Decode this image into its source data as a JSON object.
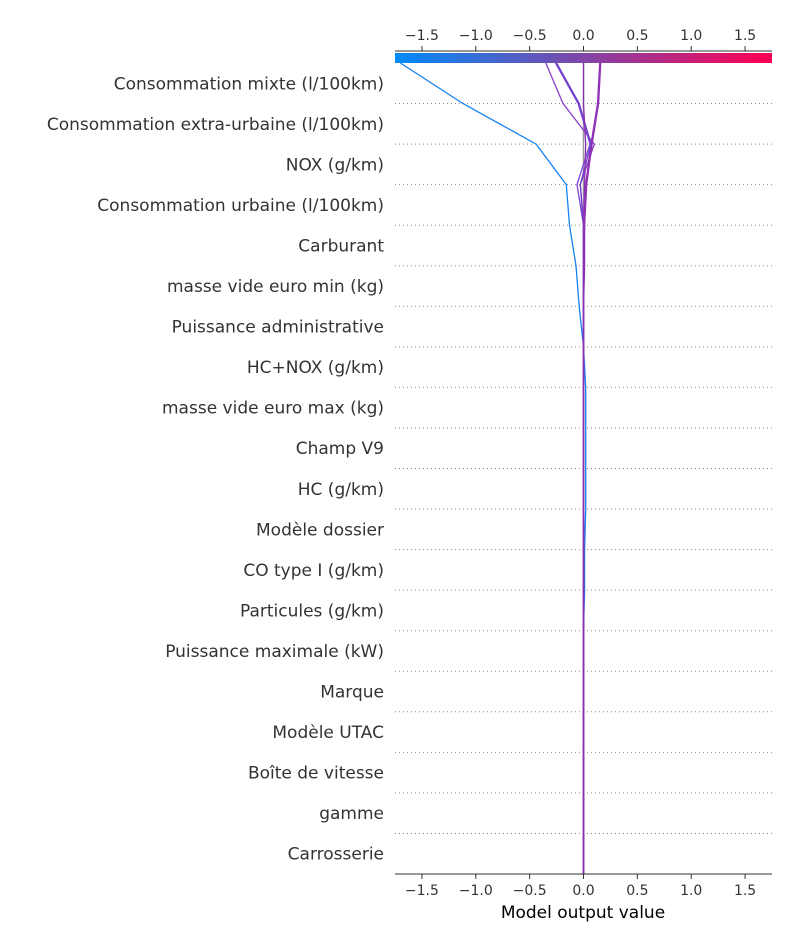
{
  "chart_data": {
    "type": "line",
    "title": "",
    "xlabel": "Model output value",
    "ylabel": "",
    "xlim": [
      -1.75,
      1.75
    ],
    "x_ticks": [
      -1.5,
      -1.0,
      -0.5,
      0.0,
      0.5,
      1.0,
      1.5
    ],
    "x_tick_labels": [
      "−1.5",
      "−1.0",
      "−0.5",
      "0.0",
      "0.5",
      "1.0",
      "1.5"
    ],
    "base_value": 0.0,
    "colorbar": {
      "colors": [
        "#008bfb",
        "#ff0052"
      ],
      "range": [
        -1.75,
        1.75
      ]
    },
    "grid": "dotted row separators",
    "features": [
      "Consommation mixte (l/100km)",
      "Consommation extra-urbaine (l/100km)",
      "NOX (g/km)",
      "Consommation urbaine (l/100km)",
      "Carburant",
      "masse vide euro min (kg)",
      "Puissance administrative",
      "HC+NOX (g/km)",
      "masse vide euro max (kg)",
      "Champ V9",
      "HC (g/km)",
      "Modèle dossier",
      "CO type I (g/km)",
      "Particules (g/km)",
      "Puissance maximale (kW)",
      "Marque",
      "Modèle UTAC",
      "Boîte de vitesse",
      "gamme",
      "Carrosserie"
    ],
    "series": [
      {
        "color": "#1582f3",
        "values": [
          -1.7,
          -1.12,
          -0.44,
          -0.16,
          -0.13,
          -0.07,
          -0.04,
          0.0,
          0.02,
          0.02,
          0.02,
          0.02,
          0.01,
          0.01,
          0.0,
          0.0,
          0.0,
          0.0,
          0.0,
          0.0,
          0.0
        ]
      },
      {
        "color": "#8a3ec9",
        "values": [
          -0.35,
          -0.19,
          0.1,
          -0.03,
          0.0,
          0.0,
          0.0,
          0.0,
          0.0,
          0.0,
          0.0,
          0.0,
          0.0,
          0.0,
          0.0,
          0.0,
          0.0,
          0.0,
          0.0,
          0.0,
          0.0
        ]
      },
      {
        "color": "#7e45d6",
        "values": [
          -0.26,
          -0.05,
          0.06,
          -0.06,
          0.0,
          0.0,
          0.0,
          0.0,
          0.0,
          0.0,
          0.0,
          0.0,
          0.0,
          0.0,
          0.0,
          0.0,
          0.0,
          0.0,
          0.0,
          0.0,
          0.0
        ]
      },
      {
        "color": "#8e2fb4",
        "values": [
          0.16,
          0.14,
          0.08,
          0.03,
          0.01,
          0.01,
          0.0,
          0.0,
          0.0,
          0.0,
          0.0,
          0.0,
          0.0,
          0.0,
          0.0,
          0.0,
          0.0,
          0.0,
          0.0,
          0.0,
          0.0
        ]
      },
      {
        "color": "#9131b4",
        "values": [
          0.15,
          0.13,
          0.07,
          0.02,
          0.01,
          0.0,
          0.0,
          0.0,
          0.0,
          0.0,
          0.0,
          0.0,
          0.0,
          0.0,
          0.0,
          0.0,
          0.0,
          0.0,
          0.0,
          0.0,
          0.0
        ]
      },
      {
        "color": "#6e3fc9",
        "values": [
          -0.25,
          -0.04,
          0.07,
          -0.03,
          0.0,
          0.0,
          0.0,
          0.0,
          0.0,
          0.0,
          0.0,
          0.0,
          0.0,
          0.0,
          0.0,
          0.0,
          0.0,
          0.0,
          0.0,
          0.0,
          0.0
        ]
      },
      {
        "color": "#8a2fb8",
        "values": [
          0.0,
          0.0,
          0.02,
          0.01,
          0.0,
          0.0,
          0.0,
          0.0,
          0.0,
          0.0,
          0.0,
          0.0,
          0.0,
          0.0,
          0.0,
          0.0,
          0.0,
          0.0,
          0.0,
          0.0,
          0.0
        ]
      }
    ]
  }
}
